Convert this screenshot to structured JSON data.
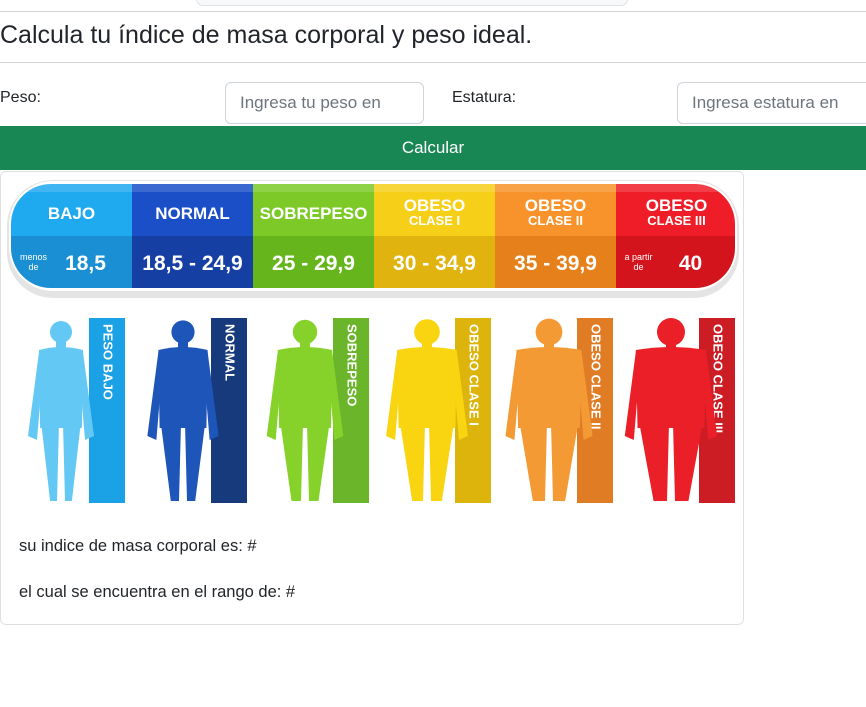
{
  "page": {
    "title": "Calcula tu índice de masa corporal y peso ideal."
  },
  "form": {
    "weight_label": "Peso:",
    "weight_placeholder": "Ingresa tu peso en",
    "height_label": "Estatura:",
    "height_placeholder": "Ingresa estatura en",
    "calculate_label": "Calcular"
  },
  "bmi_chart": {
    "categories": [
      {
        "title": "BAJO",
        "subtitle": "",
        "range_prefix_top": "menos",
        "range_prefix_bottom": "de",
        "range": "18,5",
        "figure_label": "PESO BAJO",
        "color": "#1fa9ef",
        "color_dark": "#1b8fd3",
        "figure_color": "#64c8f4",
        "stripe_color": "#1aa1e6"
      },
      {
        "title": "NORMAL",
        "subtitle": "",
        "range_prefix_top": "",
        "range_prefix_bottom": "",
        "range": "18,5 - 24,9",
        "figure_label": "NORMAL",
        "color": "#1a4fc7",
        "color_dark": "#163fa3",
        "figure_color": "#1d55b9",
        "stripe_color": "#163a7c"
      },
      {
        "title": "SOBREPESO",
        "subtitle": "",
        "range_prefix_top": "",
        "range_prefix_bottom": "",
        "range": "25 - 29,9",
        "figure_label": "SOBREPESO",
        "color": "#7cc927",
        "color_dark": "#66b51c",
        "figure_color": "#86d22b",
        "stripe_color": "#6ab52a"
      },
      {
        "title": "OBESO",
        "subtitle": "CLASE I",
        "range_prefix_top": "",
        "range_prefix_bottom": "",
        "range": "30 - 34,9",
        "figure_label": "OBESO CLASE I",
        "color": "#f6cf19",
        "color_dark": "#e0b30f",
        "figure_color": "#f9d411",
        "stripe_color": "#dcb40c"
      },
      {
        "title": "OBESO",
        "subtitle": "CLASE II",
        "range_prefix_top": "",
        "range_prefix_bottom": "",
        "range": "35 - 39,9",
        "figure_label": "OBESO CLASE II",
        "color": "#f7932a",
        "color_dark": "#e5801a",
        "figure_color": "#f39a34",
        "stripe_color": "#e07c24"
      },
      {
        "title": "OBESO",
        "subtitle": "CLASE III",
        "range_prefix_top": "a partir",
        "range_prefix_bottom": "de",
        "range": "40",
        "figure_label": "OBESO CLASE III",
        "color": "#ef1d27",
        "color_dark": "#d4141c",
        "figure_color": "#ea1f28",
        "stripe_color": "#cc1c24"
      }
    ]
  },
  "results": {
    "bmi_text": "su indice de masa corporal es: #",
    "range_text": "el cual se encuentra en el rango de: #"
  }
}
